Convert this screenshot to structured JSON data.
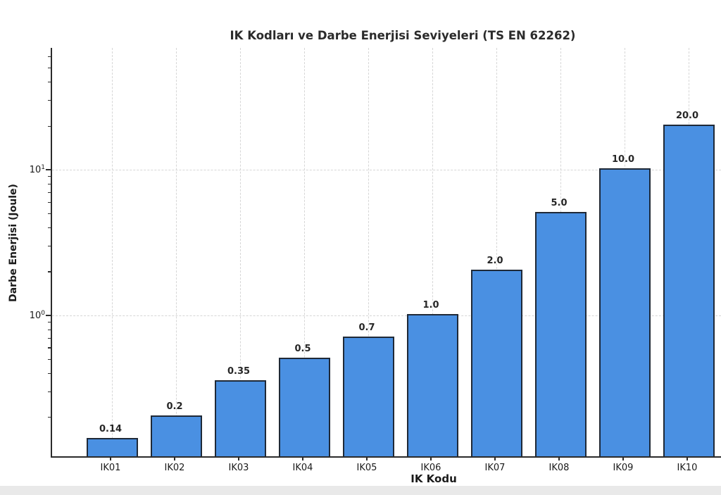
{
  "chart_data": {
    "type": "bar",
    "title": "IK Kodları ve Darbe Enerjisi Seviyeleri (TS EN 62262)",
    "xlabel": "IK Kodu",
    "ylabel": "Darbe Enerjisi (Joule)",
    "categories": [
      "IK01",
      "IK02",
      "IK03",
      "IK04",
      "IK05",
      "IK06",
      "IK07",
      "IK08",
      "IK09",
      "IK10"
    ],
    "values": [
      0.14,
      0.2,
      0.35,
      0.5,
      0.7,
      1.0,
      2.0,
      5.0,
      10.0,
      20.0
    ],
    "value_labels": [
      "0.14",
      "0.2",
      "0.35",
      "0.5",
      "0.7",
      "1.0",
      "2.0",
      "5.0",
      "10.0",
      "20.0"
    ],
    "yscale": "log",
    "ylim": [
      0.105,
      68.5
    ],
    "y_major_ticks": [
      {
        "value": 1,
        "base": "10",
        "exp": "0"
      },
      {
        "value": 10,
        "base": "10",
        "exp": "1"
      }
    ],
    "y_minor_ticks": [
      0.2,
      0.3,
      0.4,
      0.5,
      0.6,
      0.7,
      0.8,
      0.9,
      2,
      3,
      4,
      5,
      6,
      7,
      8,
      9,
      20,
      30,
      40,
      50,
      60
    ],
    "grid": true,
    "legend": null,
    "colors": {
      "bar_fill": "#4a90e2",
      "bar_edge": "#1f2937",
      "grid": "#d6d6d6",
      "spine": "#2b2b2b",
      "text": "#1a1a1a",
      "background": "#ffffff",
      "bottom_strip": "#e9e9e9"
    }
  }
}
